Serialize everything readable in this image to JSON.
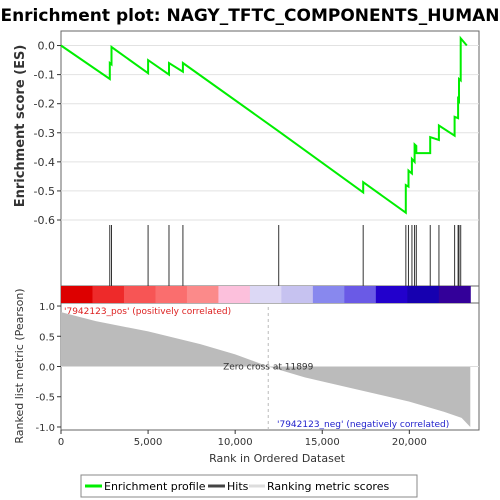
{
  "chart_data": {
    "type": "line",
    "title": "Enrichment plot: NAGY_TFTC_COMPONENTS_HUMAN",
    "xlabel": "Rank in Ordered Dataset",
    "xlim": [
      0,
      24000
    ],
    "xticks": [
      0,
      5000,
      10000,
      15000,
      20000
    ],
    "xtick_labels": [
      "0",
      "5,000",
      "10,000",
      "15,000",
      "20,000"
    ],
    "es_panel": {
      "ylabel": "Enrichment score (ES)",
      "ylim": [
        -0.6,
        0.05
      ],
      "yticks": [
        0.0,
        -0.1,
        -0.2,
        -0.3,
        -0.4,
        -0.5,
        -0.6
      ],
      "ytick_labels": [
        "0.0",
        "-0.1",
        "-0.2",
        "-0.3",
        "-0.4",
        "-0.5",
        "-0.6"
      ],
      "series": [
        {
          "name": "Enrichment profile",
          "color": "#00ee00",
          "x": [
            0,
            2800,
            2800,
            2900,
            2900,
            5000,
            5000,
            6200,
            6200,
            7000,
            7000,
            12500,
            17350,
            17350,
            19800,
            19800,
            19950,
            19950,
            20150,
            20150,
            20300,
            20300,
            20400,
            20400,
            21200,
            21200,
            21700,
            21700,
            22600,
            22600,
            22800,
            22800,
            22850,
            22850,
            22950,
            22950,
            23300
          ],
          "y": [
            0.0,
            -0.115,
            -0.06,
            -0.065,
            -0.005,
            -0.095,
            -0.05,
            -0.1,
            -0.06,
            -0.09,
            -0.06,
            -0.295,
            -0.505,
            -0.47,
            -0.575,
            -0.48,
            -0.485,
            -0.43,
            -0.44,
            -0.39,
            -0.4,
            -0.34,
            -0.345,
            -0.37,
            -0.37,
            -0.315,
            -0.325,
            -0.275,
            -0.31,
            -0.245,
            -0.25,
            -0.185,
            -0.19,
            -0.115,
            -0.12,
            0.025,
            0.0
          ]
        }
      ]
    },
    "hits": [
      2800,
      2900,
      5000,
      6200,
      7000,
      12500,
      17350,
      19800,
      19950,
      20150,
      20300,
      20400,
      21200,
      21700,
      22600,
      22800,
      22850,
      22950
    ],
    "heatmap_colors": [
      "#dd0000",
      "#ee2a2a",
      "#f75555",
      "#fa6e6e",
      "#fb8a8a",
      "#fcc0dc",
      "#dcd8f5",
      "#c6c2f0",
      "#8888ee",
      "#6a5ae6",
      "#2200cc",
      "#1600b0",
      "#330099"
    ],
    "metric_panel": {
      "ylabel": "Ranked list metric (Pearson)",
      "ylim": [
        -1.05,
        1.05
      ],
      "yticks": [
        1.0,
        0.5,
        0.0,
        -0.5,
        -1.0
      ],
      "ytick_labels": [
        "1.0",
        "0.5",
        "0.0",
        "-0.5",
        "-1.0"
      ],
      "fill_color": "#bbbbbb",
      "x": [
        0,
        2000,
        5000,
        8000,
        10000,
        11899,
        14000,
        17000,
        20000,
        22000,
        23000,
        23500
      ],
      "y": [
        0.9,
        0.75,
        0.58,
        0.37,
        0.2,
        0.0,
        -0.18,
        -0.38,
        -0.58,
        -0.75,
        -0.85,
        -1.0
      ],
      "zero_cross_label": "Zero cross at 11899",
      "zero_cross_x": 11899,
      "pos_label": "'7942123_pos' (positively correlated)",
      "neg_label": "'7942123_neg' (negatively correlated)",
      "pos_color": "#dd2222",
      "neg_color": "#2222cc"
    },
    "legend": {
      "placement": "bottom",
      "entries": [
        {
          "label": "Enrichment profile",
          "color": "#00ee00"
        },
        {
          "label": "Hits",
          "color": "#444444"
        },
        {
          "label": "Ranking metric scores",
          "color": "#bbbbbb"
        }
      ]
    }
  }
}
